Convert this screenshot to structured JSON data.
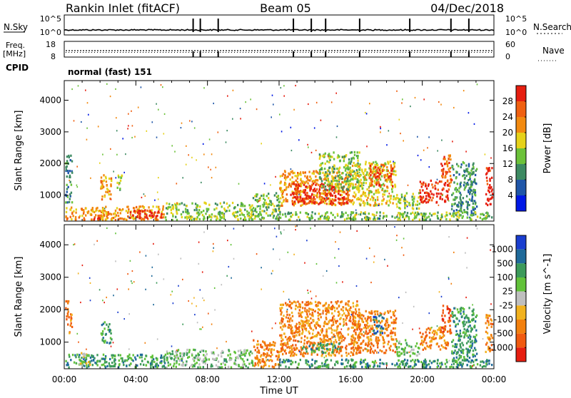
{
  "header": {
    "station": "Rankin Inlet (fitACF)",
    "beam": "Beam 05",
    "date": "04/Dec/2018"
  },
  "panels": {
    "nsky_label": "N.Sky",
    "nsky_ticks": [
      "10^5",
      "10^0"
    ],
    "nsearch_label": "N.Search",
    "nsearch_ticks": [
      "10^5",
      "10^0"
    ],
    "freq_label": "Freq.",
    "freq_unit": "[MHz]",
    "freq_ticks": [
      "18",
      "8"
    ],
    "nave_label": "Nave",
    "nave_ticks": [
      "60",
      "0"
    ],
    "cpid_label": "CPID",
    "cpid_value": "normal (fast) 151",
    "mode_change_hours": [
      7.2,
      7.6,
      8.6,
      12.8,
      13.8,
      14.6,
      16.5,
      19.3,
      21.6,
      22.6
    ]
  },
  "chart_data": [
    {
      "type": "heatmap",
      "title": "",
      "xlabel": "Time UT",
      "ylabel": "Slant Range [km]",
      "xlim": [
        0,
        24
      ],
      "ylim": [
        180,
        4620
      ],
      "x_ticks": [
        "00:00",
        "04:00",
        "08:00",
        "12:00",
        "16:00",
        "20:00",
        "00:00"
      ],
      "x_tick_hours": [
        0,
        4,
        8,
        12,
        16,
        20,
        24
      ],
      "y_ticks": [
        1000,
        2000,
        3000,
        4000
      ],
      "colorbar": {
        "label": "Power [dB]",
        "ticks": [
          "4",
          "8",
          "12",
          "16",
          "20",
          "24",
          "28"
        ],
        "colors": [
          "#0018e6",
          "#1f56a8",
          "#3d8a62",
          "#6cc23a",
          "#e6d21a",
          "#f28a10",
          "#f06010",
          "#e61e10"
        ]
      },
      "regions": [
        {
          "t0": 0.0,
          "t1": 2.2,
          "r0": 200,
          "r1": 650,
          "level": 5
        },
        {
          "t0": 0.6,
          "t1": 2.0,
          "r0": 200,
          "r1": 330,
          "level": 6
        },
        {
          "t0": 2.0,
          "t1": 5.6,
          "r0": 250,
          "r1": 700,
          "level": 5
        },
        {
          "t0": 3.6,
          "t1": 5.4,
          "r0": 280,
          "r1": 560,
          "level": 7
        },
        {
          "t0": 0.0,
          "t1": 0.4,
          "r0": 800,
          "r1": 2300,
          "level": 2
        },
        {
          "t0": 2.0,
          "t1": 2.6,
          "r0": 900,
          "r1": 1700,
          "level": 5
        },
        {
          "t0": 2.9,
          "t1": 3.2,
          "r0": 1100,
          "r1": 1700,
          "level": 3
        },
        {
          "t0": 5.6,
          "t1": 10.5,
          "r0": 200,
          "r1": 800,
          "level": 3
        },
        {
          "t0": 10.5,
          "t1": 12.0,
          "r0": 250,
          "r1": 1100,
          "level": 3
        },
        {
          "t0": 12.0,
          "t1": 16.0,
          "r0": 700,
          "r1": 1800,
          "level": 5
        },
        {
          "t0": 12.6,
          "t1": 15.8,
          "r0": 750,
          "r1": 1400,
          "level": 7
        },
        {
          "t0": 14.2,
          "t1": 16.5,
          "r0": 1200,
          "r1": 2400,
          "level": 3
        },
        {
          "t0": 16.0,
          "t1": 18.5,
          "r0": 700,
          "r1": 2100,
          "level": 4
        },
        {
          "t0": 17.0,
          "t1": 18.3,
          "r0": 1300,
          "r1": 2000,
          "level": 6
        },
        {
          "t0": 18.5,
          "t1": 19.8,
          "r0": 600,
          "r1": 1100,
          "level": 3
        },
        {
          "t0": 19.8,
          "t1": 21.4,
          "r0": 800,
          "r1": 1500,
          "level": 7
        },
        {
          "t0": 21.0,
          "t1": 21.6,
          "r0": 1200,
          "r1": 2300,
          "level": 6
        },
        {
          "t0": 21.6,
          "t1": 23.0,
          "r0": 400,
          "r1": 2100,
          "level": 2
        },
        {
          "t0": 23.5,
          "t1": 24.0,
          "r0": 700,
          "r1": 1900,
          "level": 7
        },
        {
          "t0": 12.0,
          "t1": 24.0,
          "r0": 200,
          "r1": 500,
          "level": 3
        }
      ]
    },
    {
      "type": "heatmap",
      "title": "",
      "xlabel": "Time UT",
      "ylabel": "Slant Range [km]",
      "xlim": [
        0,
        24
      ],
      "ylim": [
        180,
        4620
      ],
      "x_ticks": [
        "00:00",
        "04:00",
        "08:00",
        "12:00",
        "16:00",
        "20:00",
        "00:00"
      ],
      "x_tick_hours": [
        0,
        4,
        8,
        12,
        16,
        20,
        24
      ],
      "y_ticks": [
        1000,
        2000,
        3000,
        4000
      ],
      "colorbar": {
        "label": "Velocity [m s^-1]",
        "ticks": [
          "1000",
          "500",
          "100",
          "25",
          "-25",
          "-100",
          "-500",
          "-1000"
        ],
        "colors": [
          "#1a3ecf",
          "#1f6a9a",
          "#3c9a5a",
          "#62c23a",
          "#bfbfbf",
          "#f2b21e",
          "#f2800e",
          "#f05a10",
          "#e61e10"
        ]
      },
      "regions": [
        {
          "t0": 0.0,
          "t1": 5.6,
          "r0": 200,
          "r1": 650,
          "level": 2
        },
        {
          "t0": 0.8,
          "t1": 1.4,
          "r0": 300,
          "r1": 700,
          "level": 4
        },
        {
          "t0": 0.0,
          "t1": 0.4,
          "r0": 1300,
          "r1": 2300,
          "level": 6
        },
        {
          "t0": 2.0,
          "t1": 2.6,
          "r0": 1000,
          "r1": 1700,
          "level": 2
        },
        {
          "t0": 5.6,
          "t1": 10.5,
          "r0": 200,
          "r1": 800,
          "level": 3
        },
        {
          "t0": 10.5,
          "t1": 12.0,
          "r0": 250,
          "r1": 1100,
          "level": 6
        },
        {
          "t0": 12.0,
          "t1": 16.5,
          "r0": 600,
          "r1": 2300,
          "level": 6
        },
        {
          "t0": 13.2,
          "t1": 15.4,
          "r0": 700,
          "r1": 1000,
          "level": 2
        },
        {
          "t0": 16.0,
          "t1": 18.5,
          "r0": 700,
          "r1": 2000,
          "level": 6
        },
        {
          "t0": 17.2,
          "t1": 17.8,
          "r0": 1300,
          "r1": 1900,
          "level": 1
        },
        {
          "t0": 18.5,
          "t1": 19.8,
          "r0": 600,
          "r1": 1100,
          "level": 3
        },
        {
          "t0": 19.8,
          "t1": 21.4,
          "r0": 800,
          "r1": 1500,
          "level": 6
        },
        {
          "t0": 21.0,
          "t1": 21.6,
          "r0": 1300,
          "r1": 2200,
          "level": 7
        },
        {
          "t0": 21.6,
          "t1": 23.0,
          "r0": 400,
          "r1": 2100,
          "level": 2
        },
        {
          "t0": 23.5,
          "t1": 24.0,
          "r0": 700,
          "r1": 1900,
          "level": 6
        },
        {
          "t0": 12.0,
          "t1": 24.0,
          "r0": 200,
          "r1": 500,
          "level": 2
        }
      ]
    }
  ]
}
